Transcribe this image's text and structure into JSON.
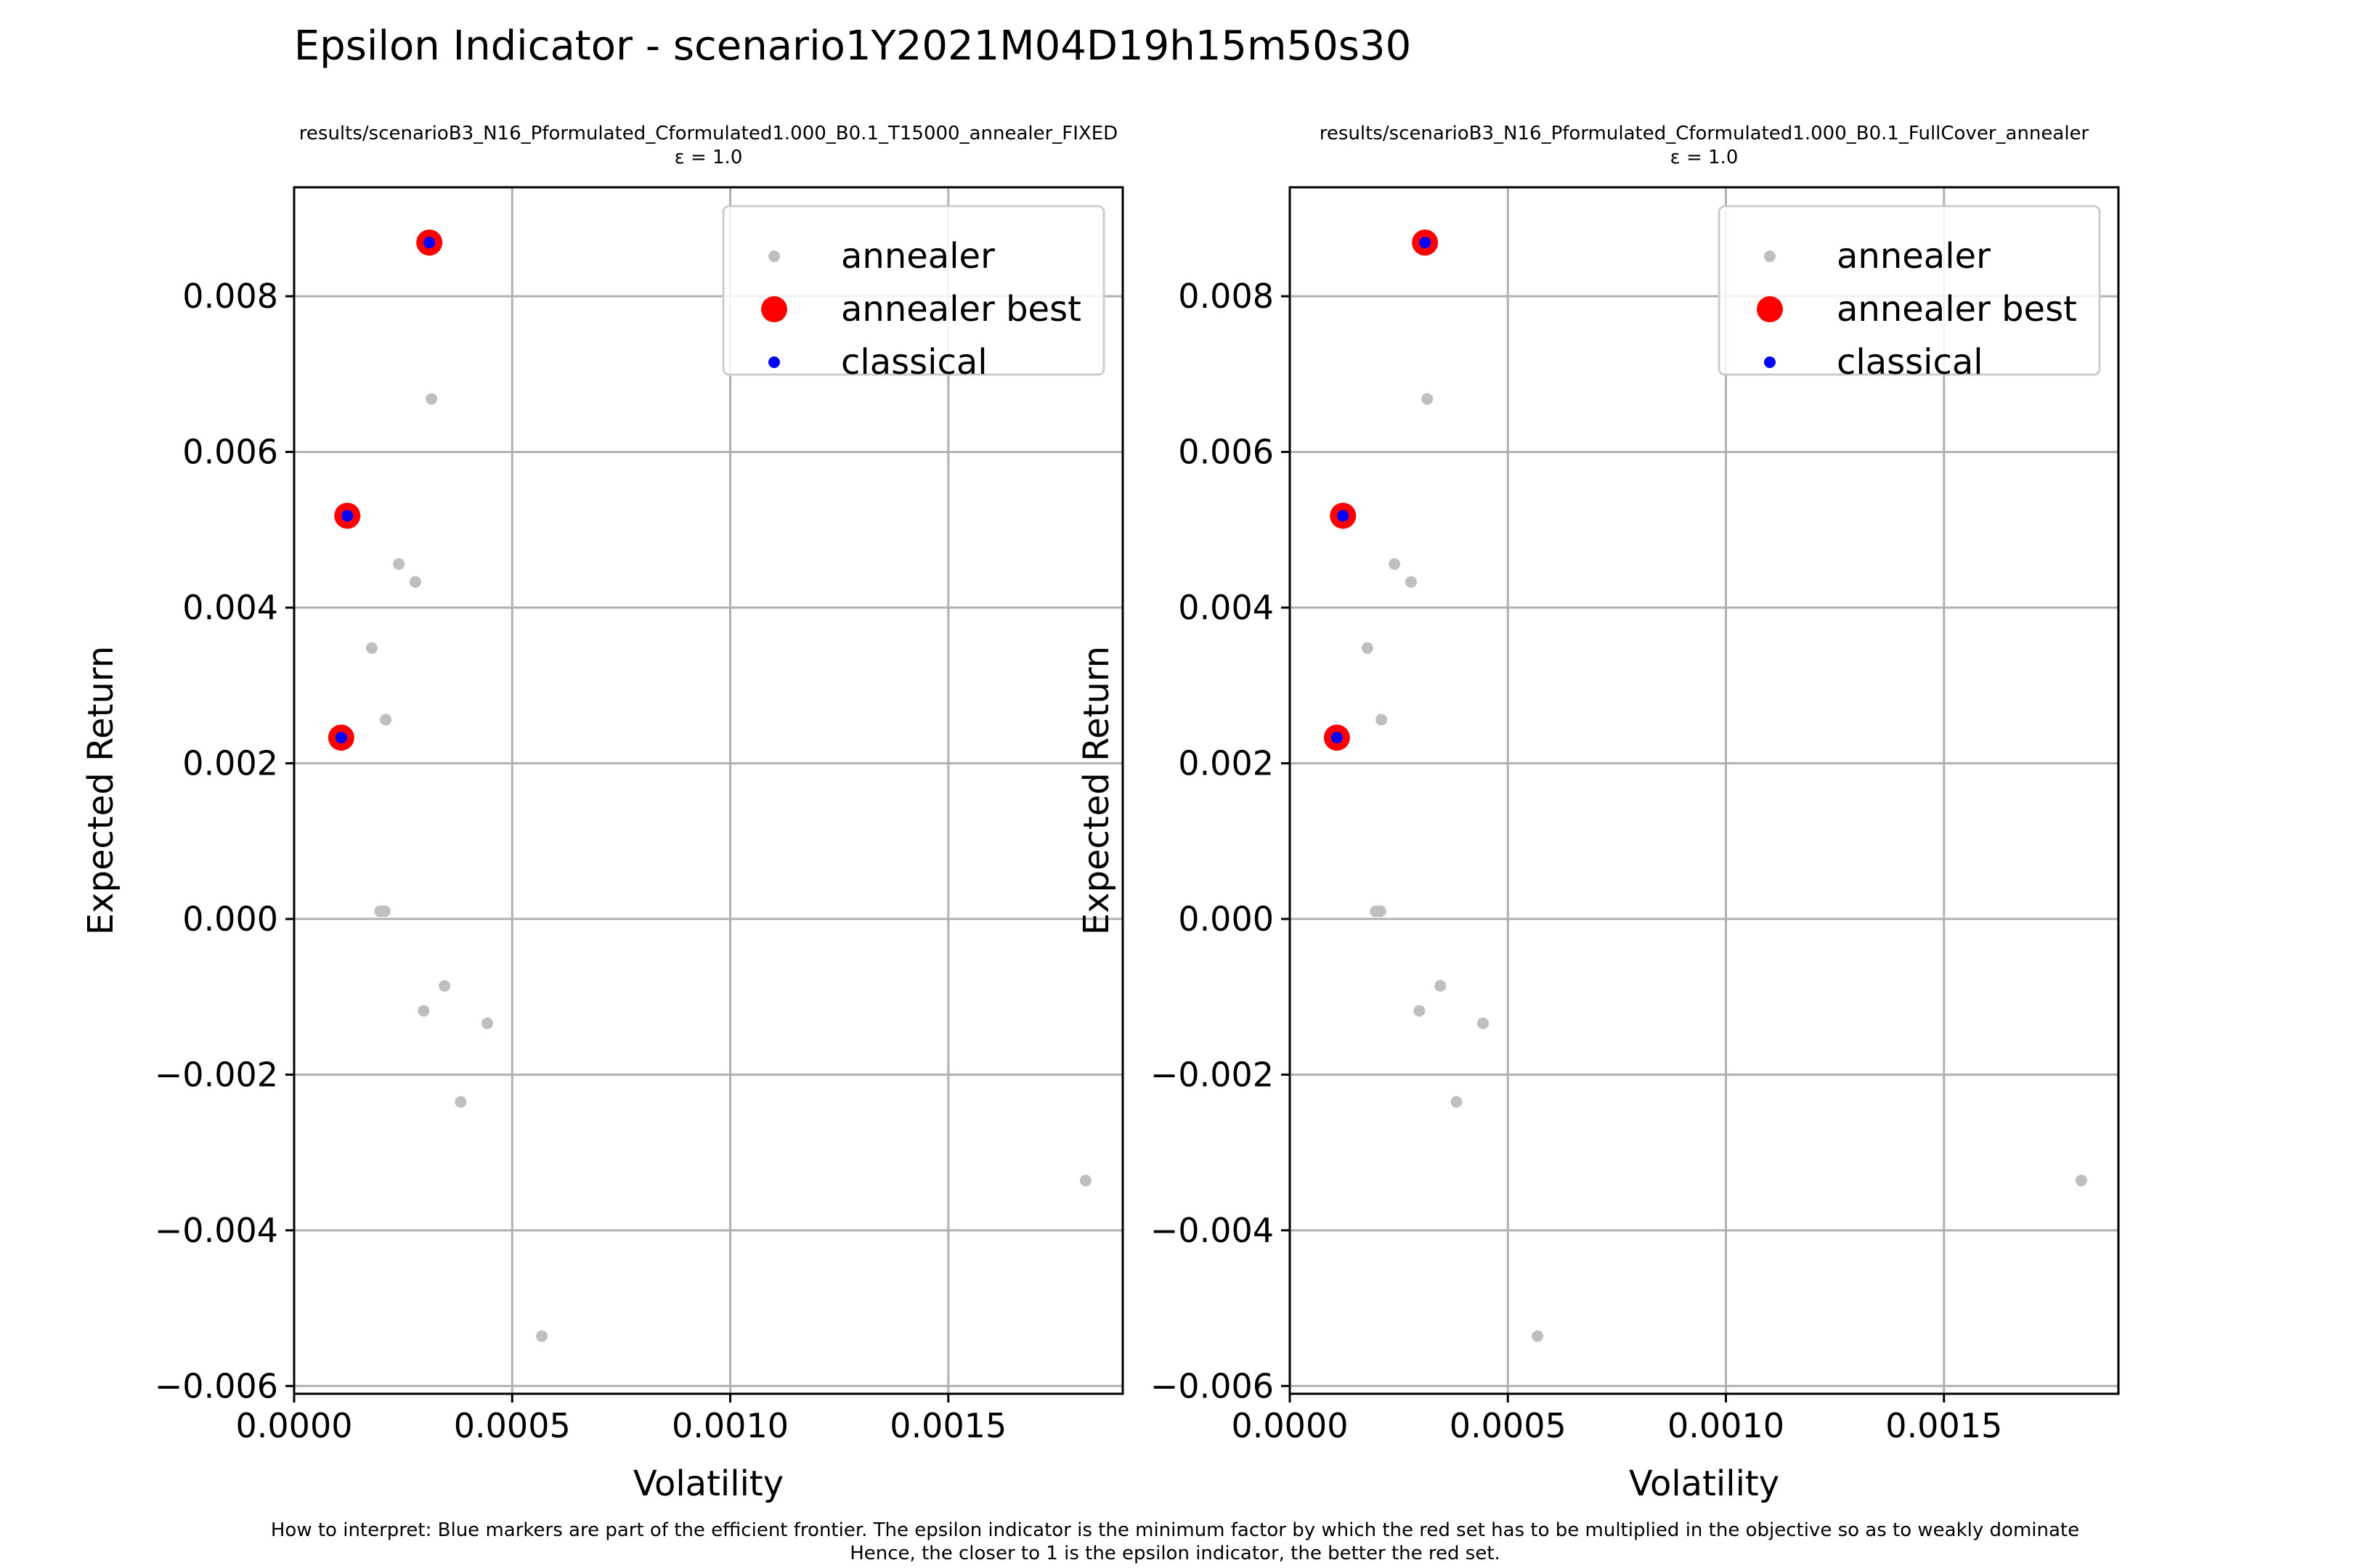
{
  "title": "Epsilon Indicator - scenario1Y2021M04D19h15m50s30",
  "footnote": {
    "line1": "How to interpret: Blue markers are part of the efficient frontier. The epsilon indicator is the minimum factor by which the red set has to be multiplied in the objective so as to weakly dominate",
    "line2": "Hence, the closer to 1 is the epsilon indicator, the better the red set."
  },
  "colors": {
    "annealer": "#bfbfbf",
    "best": "#ff0000",
    "classical": "#0000ff",
    "grid": "#b0b0b0"
  },
  "chart_data": [
    {
      "type": "scatter",
      "title": "results/scenarioB3_N16_Pformulated_Cformulated1.000_B0.1_T15000_annealer_FIXED",
      "subtitle": "ε = 1.0",
      "xlabel": "Volatility",
      "ylabel": "Expected Return",
      "xlim": [
        0,
        0.0019
      ],
      "ylim": [
        -0.0061,
        0.0094
      ],
      "xticks": [
        0,
        0.0005,
        0.001,
        0.0015
      ],
      "xtick_labels": [
        "0.0000",
        "0.0005",
        "0.0010",
        "0.0015"
      ],
      "yticks": [
        -0.006,
        -0.004,
        -0.002,
        0,
        0.002,
        0.004,
        0.006,
        0.008
      ],
      "ytick_labels": [
        "−0.006",
        "−0.004",
        "−0.002",
        "0.000",
        "0.002",
        "0.004",
        "0.006",
        "0.008"
      ],
      "grid": true,
      "legend_position": "top-right",
      "series": [
        {
          "name": "annealer",
          "marker": "small-dot",
          "points": [
            [
              0.00031,
              0.00869
            ],
            [
              0.000315,
              0.00668
            ],
            [
              0.000122,
              0.00518
            ],
            [
              0.00024,
              0.00456
            ],
            [
              0.000278,
              0.00433
            ],
            [
              0.000178,
              0.00348
            ],
            [
              0.00021,
              0.00256
            ],
            [
              0.000108,
              0.00233
            ],
            [
              0.000197,
              0.0001
            ],
            [
              0.000208,
              0.0001
            ],
            [
              0.000345,
              -0.00086
            ],
            [
              0.000297,
              -0.00118
            ],
            [
              0.000443,
              -0.00134
            ],
            [
              0.000382,
              -0.00235
            ],
            [
              0.001815,
              -0.00336
            ],
            [
              0.000568,
              -0.00536
            ]
          ]
        },
        {
          "name": "annealer best",
          "marker": "large-dot",
          "points": [
            [
              0.00031,
              0.00869
            ],
            [
              0.000122,
              0.00518
            ],
            [
              0.000108,
              0.00233
            ]
          ]
        },
        {
          "name": "classical",
          "marker": "small-dot",
          "points": [
            [
              0.00031,
              0.00869
            ],
            [
              0.000122,
              0.00518
            ],
            [
              0.000108,
              0.00233
            ]
          ]
        }
      ]
    },
    {
      "type": "scatter",
      "title": "results/scenarioB3_N16_Pformulated_Cformulated1.000_B0.1_FullCover_annealer",
      "subtitle": "ε = 1.0",
      "xlabel": "Volatility",
      "ylabel": "Expected Return",
      "xlim": [
        0,
        0.0019
      ],
      "ylim": [
        -0.0061,
        0.0094
      ],
      "xticks": [
        0,
        0.0005,
        0.001,
        0.0015
      ],
      "xtick_labels": [
        "0.0000",
        "0.0005",
        "0.0010",
        "0.0015"
      ],
      "yticks": [
        -0.006,
        -0.004,
        -0.002,
        0,
        0.002,
        0.004,
        0.006,
        0.008
      ],
      "ytick_labels": [
        "−0.006",
        "−0.004",
        "−0.002",
        "0.000",
        "0.002",
        "0.004",
        "0.006",
        "0.008"
      ],
      "grid": true,
      "legend_position": "top-right",
      "series": [
        {
          "name": "annealer",
          "marker": "small-dot",
          "points": [
            [
              0.00031,
              0.00869
            ],
            [
              0.000315,
              0.00668
            ],
            [
              0.000122,
              0.00518
            ],
            [
              0.00024,
              0.00456
            ],
            [
              0.000278,
              0.00433
            ],
            [
              0.000178,
              0.00348
            ],
            [
              0.00021,
              0.00256
            ],
            [
              0.000108,
              0.00233
            ],
            [
              0.000197,
              0.0001
            ],
            [
              0.000208,
              0.0001
            ],
            [
              0.000345,
              -0.00086
            ],
            [
              0.000297,
              -0.00118
            ],
            [
              0.000443,
              -0.00134
            ],
            [
              0.000382,
              -0.00235
            ],
            [
              0.001815,
              -0.00336
            ],
            [
              0.000568,
              -0.00536
            ]
          ]
        },
        {
          "name": "annealer best",
          "marker": "large-dot",
          "points": [
            [
              0.00031,
              0.00869
            ],
            [
              0.000122,
              0.00518
            ],
            [
              0.000108,
              0.00233
            ]
          ]
        },
        {
          "name": "classical",
          "marker": "small-dot",
          "points": [
            [
              0.00031,
              0.00869
            ],
            [
              0.000122,
              0.00518
            ],
            [
              0.000108,
              0.00233
            ]
          ]
        }
      ]
    }
  ]
}
